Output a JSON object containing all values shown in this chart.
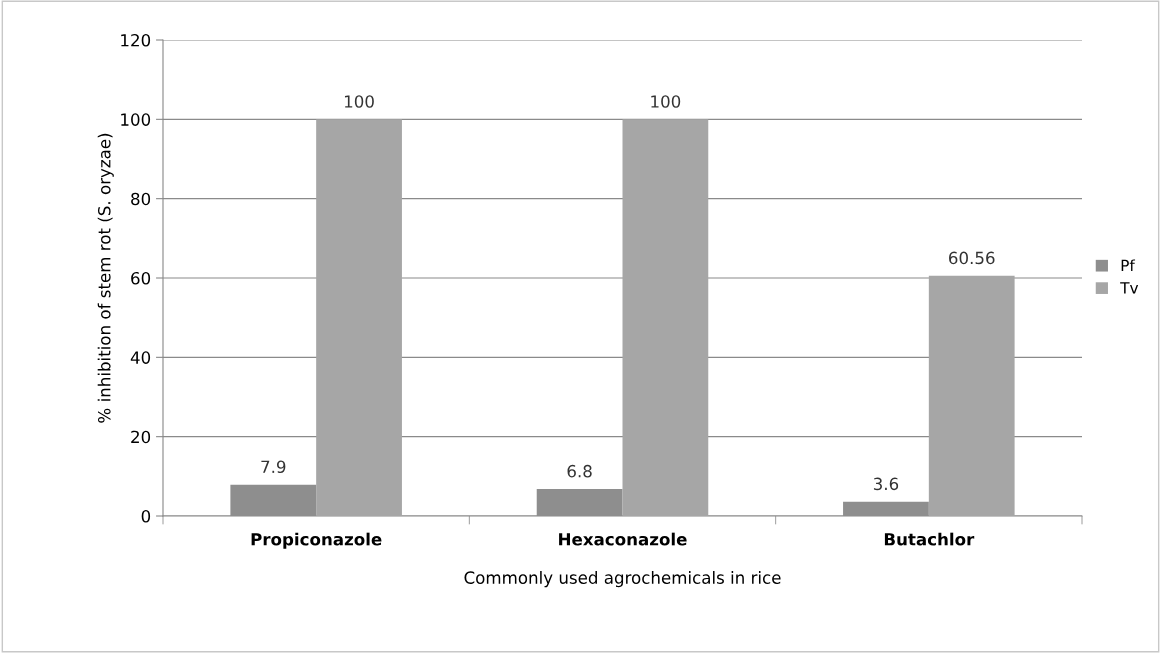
{
  "chart_data": {
    "type": "bar",
    "xlabel": "Commonly used agrochemicals in rice",
    "ylabel": "% inhibition of stem rot (S. oryzae)",
    "categories": [
      "Propiconazole",
      "Hexaconazole",
      "Butachlor"
    ],
    "series": [
      {
        "name": "Pf",
        "color": "#8e8e8e",
        "values": [
          7.9,
          6.8,
          3.6
        ]
      },
      {
        "name": "Tv",
        "color": "#a6a6a6",
        "values": [
          100,
          100,
          60.56
        ]
      }
    ],
    "ylim": [
      0,
      120
    ],
    "yticks": [
      0,
      20,
      40,
      60,
      80,
      100,
      120
    ],
    "grid": "y",
    "legend": "right",
    "data_labels": true
  }
}
